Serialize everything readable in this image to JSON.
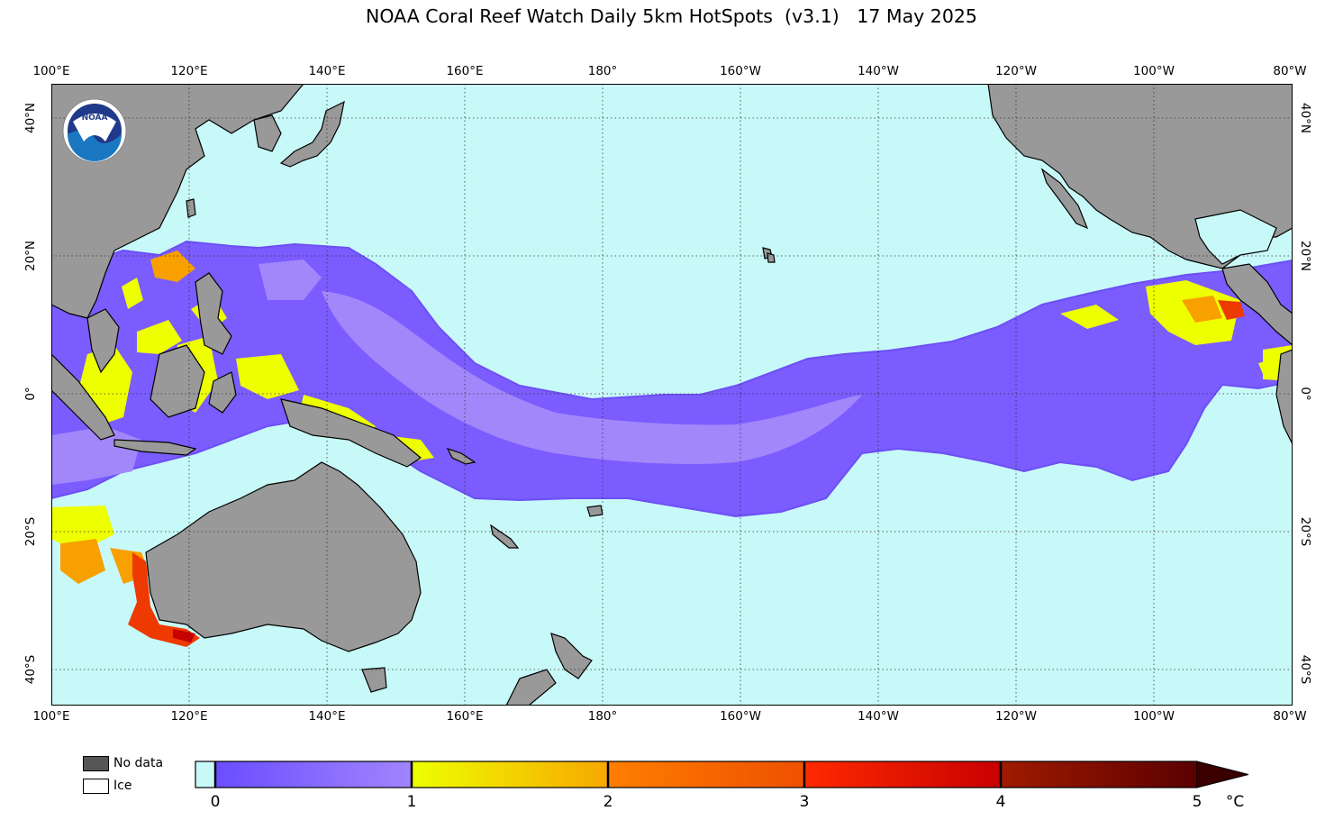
{
  "title": "NOAA Coral Reef Watch Daily 5km HotSpots  (v3.1)   17 May 2025",
  "lon_labels": [
    "100°E",
    "120°E",
    "140°E",
    "160°E",
    "180°",
    "160°W",
    "140°W",
    "120°W",
    "100°W",
    "80°W"
  ],
  "lat_labels_left": [
    "40°N",
    "20°N",
    "0°",
    "20°S",
    "40°S"
  ],
  "lat_labels_right": [
    "40°N",
    "20°N",
    "0°",
    "20°S",
    "40°S"
  ],
  "legend": {
    "no_data": "No data",
    "ice": "Ice"
  },
  "colorbar": {
    "ticks": [
      "0",
      "1",
      "2",
      "3",
      "4",
      "5"
    ],
    "unit": "°C",
    "colors": [
      "#c8f9f9",
      "#6a4dff",
      "#a185fd",
      "#eeff00",
      "#f7b000",
      "#ff7e00",
      "#ee3a00",
      "#c80000",
      "#7a0000",
      "#3a0000"
    ]
  },
  "colors": {
    "ocean": "#c8f9f9",
    "land": "#999999",
    "no_data": "#555555",
    "ice": "#ffffff"
  },
  "logo": {
    "text": "NOAA"
  }
}
